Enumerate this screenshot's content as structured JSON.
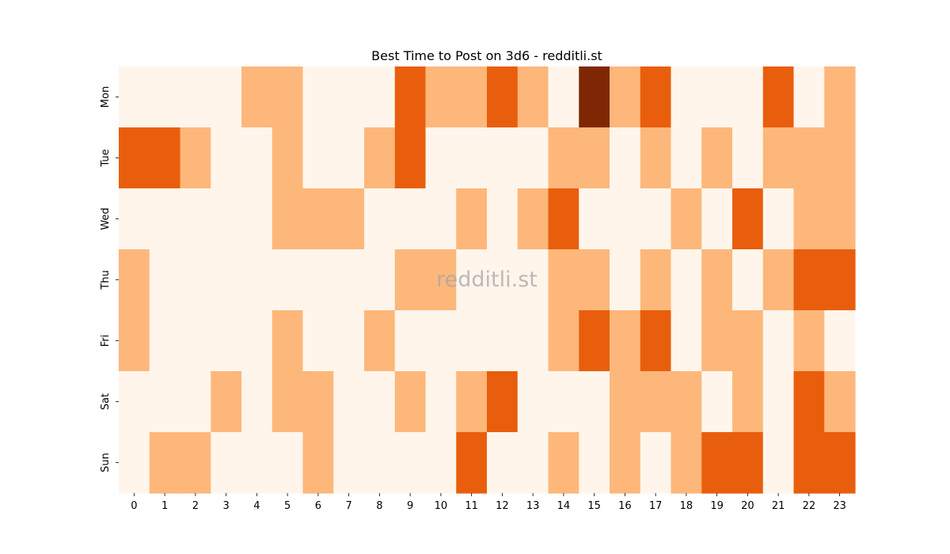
{
  "chart_data": {
    "type": "heatmap",
    "title": "Best Time to Post on 3d6 - redditli.st",
    "watermark": "redditli.st",
    "x_categories": [
      "0",
      "1",
      "2",
      "3",
      "4",
      "5",
      "6",
      "7",
      "8",
      "9",
      "10",
      "11",
      "12",
      "13",
      "14",
      "15",
      "16",
      "17",
      "18",
      "19",
      "20",
      "21",
      "22",
      "23"
    ],
    "y_categories": [
      "Mon",
      "Tue",
      "Wed",
      "Thu",
      "Fri",
      "Sat",
      "Sun"
    ],
    "values": [
      [
        0,
        0,
        0,
        0,
        1,
        1,
        0,
        0,
        0,
        2,
        1,
        1,
        2,
        1,
        0,
        3,
        1,
        2,
        0,
        0,
        0,
        2,
        0,
        1
      ],
      [
        2,
        2,
        1,
        0,
        0,
        1,
        0,
        0,
        1,
        2,
        0,
        0,
        0,
        0,
        1,
        1,
        0,
        1,
        0,
        1,
        0,
        1,
        1,
        1
      ],
      [
        0,
        0,
        0,
        0,
        0,
        1,
        1,
        1,
        0,
        0,
        0,
        1,
        0,
        1,
        2,
        0,
        0,
        0,
        1,
        0,
        2,
        0,
        1,
        1
      ],
      [
        1,
        0,
        0,
        0,
        0,
        0,
        0,
        0,
        0,
        1,
        1,
        0,
        0,
        0,
        1,
        1,
        0,
        1,
        0,
        1,
        0,
        1,
        2,
        2
      ],
      [
        1,
        0,
        0,
        0,
        0,
        1,
        0,
        0,
        1,
        0,
        0,
        0,
        0,
        0,
        1,
        2,
        1,
        2,
        0,
        1,
        1,
        0,
        1,
        0
      ],
      [
        0,
        0,
        0,
        1,
        0,
        1,
        1,
        0,
        0,
        1,
        0,
        1,
        2,
        0,
        0,
        0,
        1,
        1,
        1,
        0,
        1,
        0,
        2,
        1
      ],
      [
        0,
        1,
        1,
        0,
        0,
        0,
        1,
        0,
        0,
        0,
        0,
        2,
        0,
        0,
        1,
        0,
        1,
        0,
        1,
        2,
        2,
        0,
        2,
        2
      ]
    ],
    "color_scale": [
      "#fff5eb",
      "#fdb77a",
      "#e95e0d",
      "#7f2704"
    ],
    "colorbar": false,
    "grid": false
  }
}
